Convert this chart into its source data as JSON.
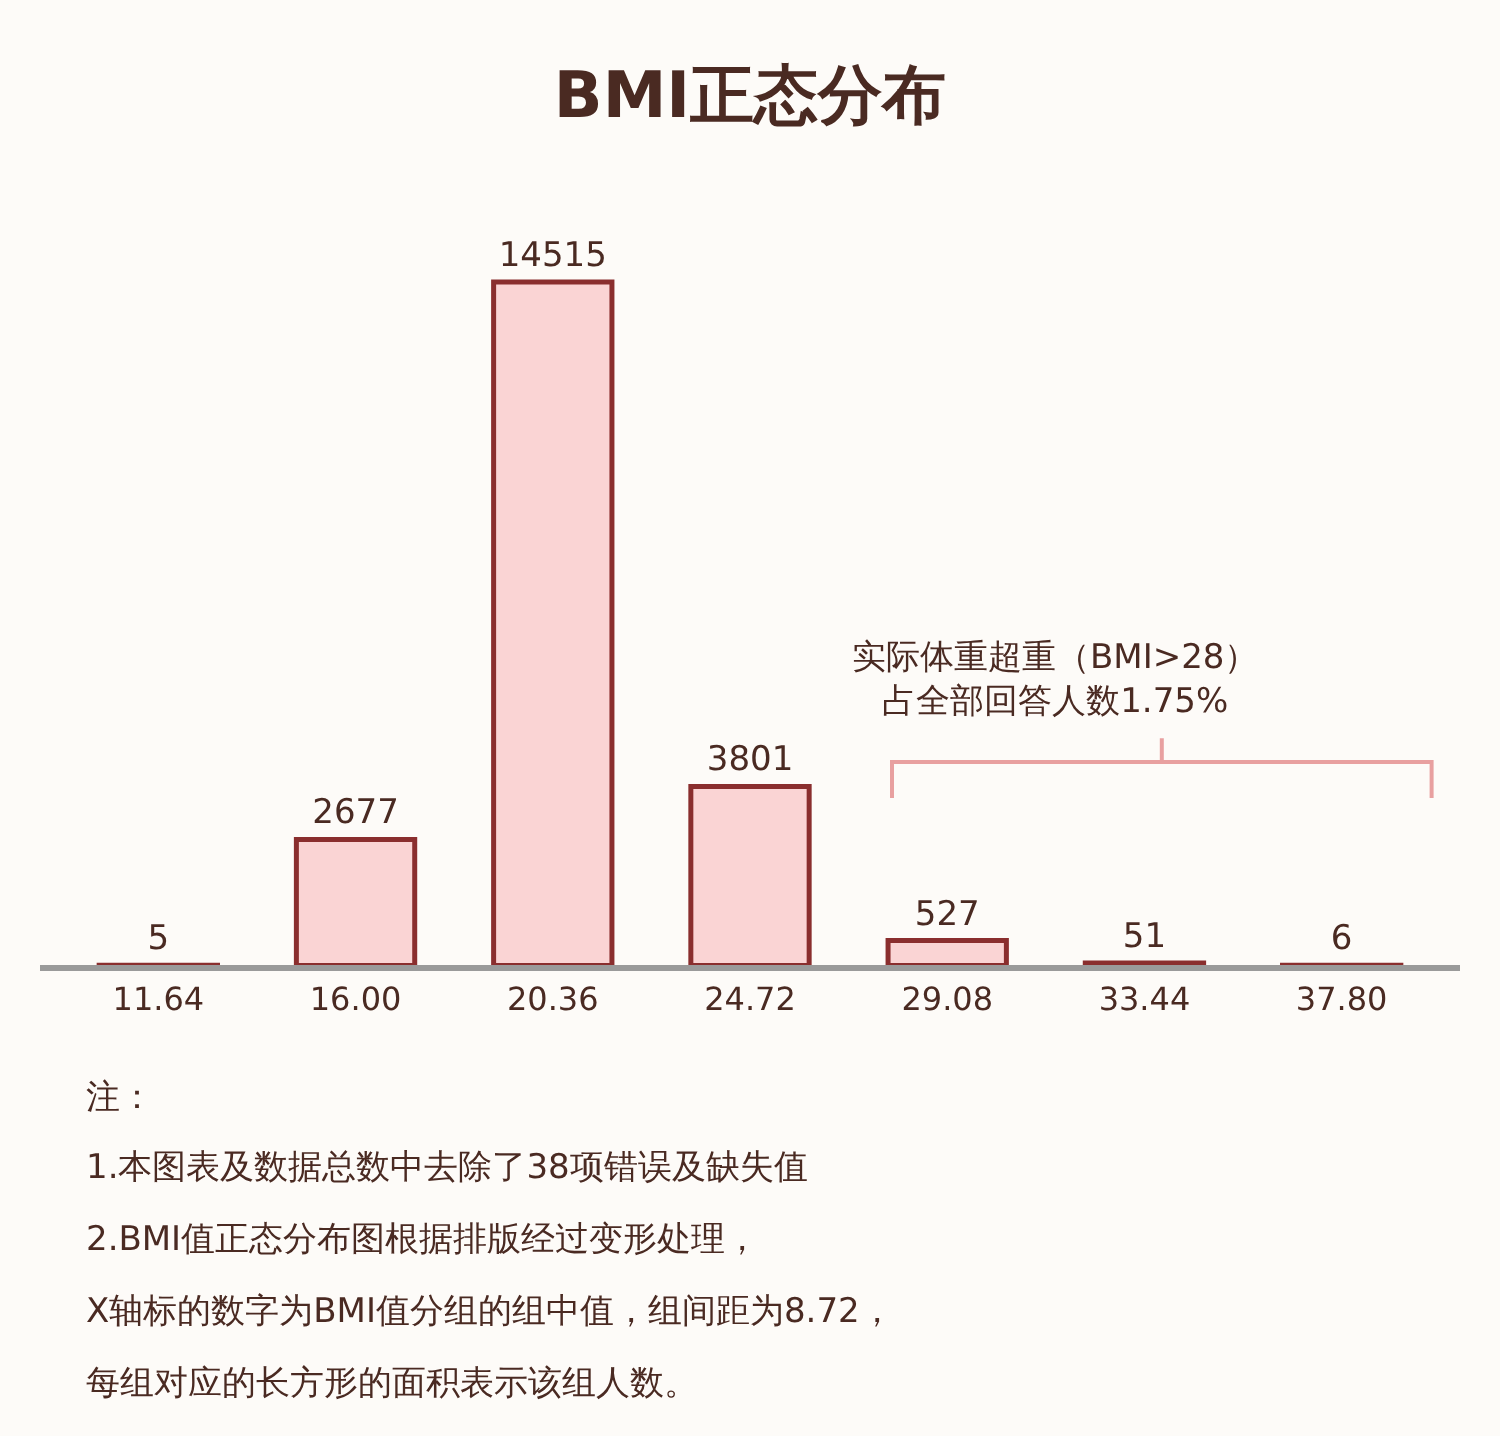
{
  "chart_data": {
    "type": "bar",
    "title": "BMI正态分布",
    "categories": [
      "11.64",
      "16.00",
      "20.36",
      "24.72",
      "29.08",
      "33.44",
      "37.80"
    ],
    "values": [
      5,
      2677,
      14515,
      3801,
      527,
      51,
      6
    ],
    "color": "#fad4d4",
    "data_labels": true,
    "grid": false,
    "legend": false,
    "annotations": [
      "实际体重超重（BMI>28）占全部回答人数1.75%",
      "注：",
      "1.本图表及数据总数中去除了38项错误及缺失值",
      "2.BMI值正态分布图根据排版经过变形处理，",
      "X轴标的数字为BMI值分组的组中值，组间距为8.72，",
      "每组对应的长方形的面积表示该组人数。"
    ]
  }
}
